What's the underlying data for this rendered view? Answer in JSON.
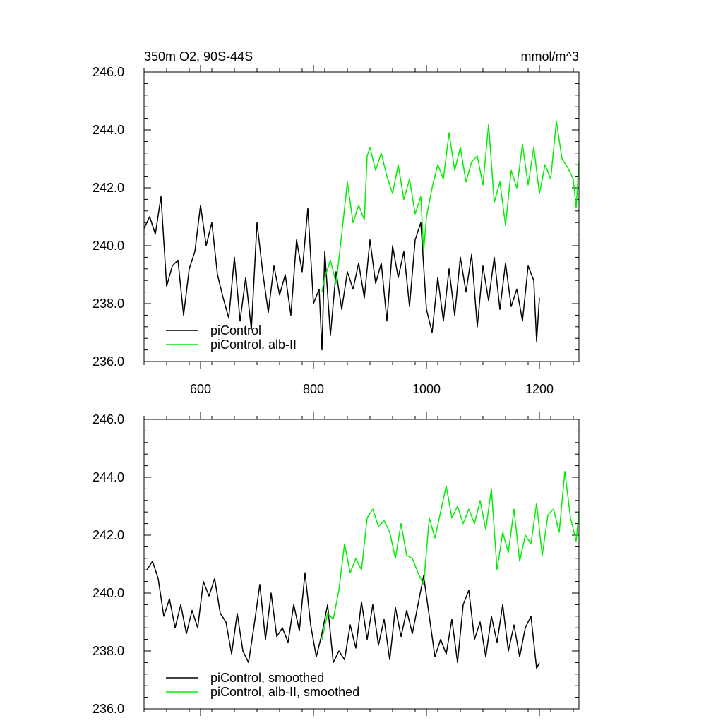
{
  "chart_data": [
    {
      "type": "line",
      "title_left": "350m O2, 90S-44S",
      "title_right": "mmol/m^3",
      "xlim": [
        500,
        1270
      ],
      "ylim": [
        236.0,
        246.0
      ],
      "x_ticks": [
        600,
        800,
        1000,
        1200
      ],
      "x_tick_labels": [
        "600",
        "800",
        "1000",
        "1200"
      ],
      "y_ticks": [
        236.0,
        238.0,
        240.0,
        242.0,
        244.0,
        246.0
      ],
      "y_tick_labels": [
        "236.0",
        "238.0",
        "240.0",
        "242.0",
        "244.0",
        "246.0"
      ],
      "legend_position": "bottom-left",
      "series": [
        {
          "name": "piControl",
          "color": "#000000",
          "x": [
            500,
            510,
            520,
            530,
            540,
            550,
            560,
            570,
            580,
            590,
            600,
            610,
            620,
            630,
            640,
            650,
            660,
            670,
            680,
            690,
            700,
            710,
            720,
            730,
            740,
            750,
            760,
            770,
            780,
            790,
            800,
            810,
            815,
            820,
            830,
            840,
            850,
            860,
            870,
            880,
            890,
            900,
            910,
            920,
            930,
            940,
            950,
            960,
            970,
            980,
            990,
            1000,
            1010,
            1020,
            1030,
            1040,
            1050,
            1060,
            1070,
            1080,
            1090,
            1100,
            1110,
            1120,
            1130,
            1140,
            1150,
            1160,
            1170,
            1180,
            1190,
            1195,
            1200
          ],
          "values": [
            240.6,
            241.0,
            240.4,
            241.7,
            238.6,
            239.3,
            239.5,
            237.6,
            239.2,
            239.8,
            241.4,
            240.0,
            240.8,
            239.0,
            238.2,
            237.5,
            239.6,
            237.4,
            238.9,
            237.1,
            240.8,
            239.1,
            237.7,
            239.3,
            238.3,
            239.0,
            237.6,
            240.2,
            239.1,
            241.3,
            238.0,
            238.5,
            236.4,
            239.8,
            236.9,
            239.1,
            237.8,
            239.1,
            238.5,
            239.4,
            238.2,
            240.2,
            238.7,
            239.4,
            237.4,
            240.0,
            238.9,
            239.8,
            237.9,
            240.2,
            240.8,
            237.8,
            237.0,
            238.9,
            237.4,
            239.2,
            237.6,
            239.6,
            238.4,
            239.7,
            237.2,
            239.3,
            238.1,
            239.6,
            237.8,
            239.4,
            237.9,
            238.5,
            237.4,
            239.3,
            238.8,
            236.7,
            238.2
          ]
        },
        {
          "name": "piControl, alb-II",
          "color": "#00ee00",
          "x": [
            815,
            820,
            830,
            840,
            850,
            860,
            870,
            880,
            890,
            895,
            900,
            910,
            920,
            930,
            940,
            950,
            960,
            970,
            980,
            990,
            995,
            1000,
            1010,
            1020,
            1030,
            1040,
            1050,
            1060,
            1070,
            1080,
            1090,
            1100,
            1110,
            1120,
            1130,
            1140,
            1150,
            1160,
            1170,
            1180,
            1190,
            1200,
            1210,
            1220,
            1230,
            1240,
            1250,
            1260,
            1265,
            1270
          ],
          "values": [
            238.4,
            238.9,
            239.5,
            238.7,
            240.4,
            242.2,
            240.8,
            241.4,
            240.9,
            243.1,
            243.4,
            242.6,
            243.2,
            242.4,
            241.8,
            242.8,
            241.6,
            242.3,
            241.1,
            241.7,
            239.8,
            241.0,
            242.0,
            242.8,
            242.3,
            243.9,
            242.6,
            243.4,
            242.2,
            242.9,
            243.1,
            242.1,
            244.2,
            241.5,
            242.2,
            240.7,
            242.6,
            242.0,
            243.5,
            242.1,
            243.4,
            241.8,
            242.8,
            242.3,
            244.3,
            243.0,
            242.7,
            242.3,
            241.3,
            242.9
          ]
        }
      ]
    },
    {
      "type": "line",
      "xlim": [
        500,
        1270
      ],
      "ylim": [
        236.0,
        246.0
      ],
      "x_ticks": [
        600,
        800,
        1000,
        1200
      ],
      "y_ticks": [
        236.0,
        238.0,
        240.0,
        242.0,
        244.0,
        246.0
      ],
      "y_tick_labels": [
        "236.0",
        "238.0",
        "240.0",
        "242.0",
        "244.0",
        "246.0"
      ],
      "legend_position": "bottom-left",
      "series": [
        {
          "name": "piControl, smoothed",
          "color": "#000000",
          "x": [
            505,
            515,
            525,
            535,
            545,
            555,
            565,
            575,
            585,
            595,
            605,
            615,
            625,
            635,
            645,
            655,
            665,
            675,
            685,
            695,
            705,
            715,
            725,
            735,
            745,
            755,
            765,
            775,
            785,
            795,
            805,
            815,
            825,
            835,
            845,
            855,
            865,
            875,
            885,
            895,
            905,
            915,
            925,
            935,
            945,
            955,
            965,
            975,
            985,
            995,
            1005,
            1015,
            1025,
            1035,
            1045,
            1055,
            1065,
            1075,
            1085,
            1095,
            1105,
            1115,
            1125,
            1135,
            1145,
            1155,
            1165,
            1175,
            1185,
            1195,
            1200
          ],
          "values": [
            240.8,
            241.1,
            240.5,
            239.2,
            239.8,
            238.8,
            239.6,
            238.6,
            239.4,
            238.8,
            240.4,
            239.9,
            240.5,
            239.3,
            239.0,
            237.9,
            239.3,
            238.0,
            237.6,
            238.9,
            240.3,
            238.4,
            240.0,
            238.5,
            238.8,
            238.3,
            239.6,
            238.7,
            240.7,
            238.9,
            237.8,
            238.6,
            239.6,
            237.6,
            238.0,
            237.7,
            238.9,
            238.1,
            239.7,
            238.4,
            239.6,
            238.2,
            239.1,
            237.7,
            239.5,
            238.5,
            239.4,
            238.6,
            239.6,
            240.6,
            239.2,
            237.8,
            238.4,
            237.9,
            239.1,
            237.6,
            239.6,
            240.1,
            238.4,
            239.0,
            237.8,
            239.2,
            238.3,
            239.6,
            238.0,
            238.9,
            237.8,
            238.8,
            239.2,
            237.4,
            237.6
          ]
        },
        {
          "name": "piControl, alb-II, smoothed",
          "color": "#00ee00",
          "x": [
            815,
            825,
            835,
            845,
            855,
            865,
            875,
            885,
            895,
            905,
            915,
            925,
            935,
            945,
            955,
            965,
            975,
            985,
            995,
            1005,
            1015,
            1025,
            1035,
            1045,
            1055,
            1065,
            1075,
            1085,
            1095,
            1105,
            1115,
            1125,
            1135,
            1145,
            1155,
            1165,
            1175,
            1185,
            1195,
            1205,
            1215,
            1225,
            1235,
            1245,
            1255,
            1265,
            1270
          ],
          "values": [
            238.4,
            239.3,
            239.1,
            240.1,
            241.7,
            240.7,
            241.2,
            240.8,
            242.6,
            242.9,
            242.3,
            242.5,
            242.1,
            241.2,
            242.4,
            241.3,
            241.2,
            240.7,
            240.3,
            242.6,
            241.9,
            242.8,
            243.7,
            242.6,
            243.0,
            242.4,
            242.9,
            242.4,
            243.2,
            242.2,
            243.6,
            240.8,
            242.1,
            241.4,
            242.9,
            241.1,
            242.0,
            241.7,
            243.1,
            241.3,
            242.7,
            242.9,
            242.1,
            244.2,
            242.6,
            241.8,
            242.8
          ]
        }
      ]
    }
  ]
}
